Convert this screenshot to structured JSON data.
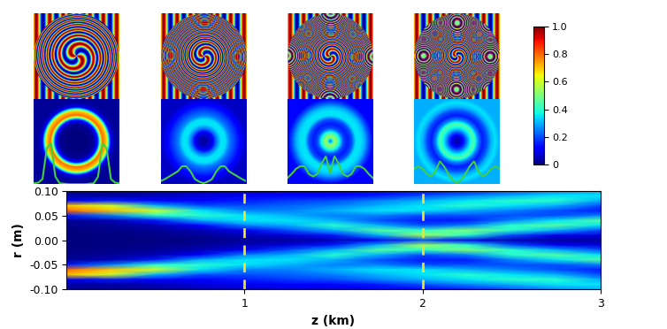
{
  "chart_data": {
    "type": "heatmap",
    "x_label": "z (km)",
    "y_label": "r (m)",
    "x": [
      0,
      0.25,
      0.5,
      0.75,
      1,
      1.25,
      1.5,
      1.75,
      2,
      2.25,
      2.5,
      2.75,
      3
    ],
    "y": [
      0.1,
      0.09,
      0.08,
      0.07,
      0.06,
      0.05,
      0.04,
      0.03,
      0.02,
      0.01,
      0.0,
      -0.01,
      -0.02,
      -0.03,
      -0.04,
      -0.05,
      -0.06,
      -0.07,
      -0.08,
      -0.09,
      -0.1
    ],
    "cells": [
      [
        0.02,
        0.02,
        0.03,
        0.05,
        0.06,
        0.08,
        0.08,
        0.1,
        0.12,
        0.15,
        0.2,
        0.25,
        0.3
      ],
      [
        0.03,
        0.03,
        0.05,
        0.08,
        0.1,
        0.12,
        0.12,
        0.15,
        0.2,
        0.25,
        0.3,
        0.35,
        0.35
      ],
      [
        0.1,
        0.15,
        0.12,
        0.12,
        0.15,
        0.18,
        0.2,
        0.25,
        0.3,
        0.35,
        0.4,
        0.4,
        0.3
      ],
      [
        0.7,
        0.6,
        0.3,
        0.2,
        0.2,
        0.22,
        0.25,
        0.3,
        0.35,
        0.4,
        0.35,
        0.3,
        0.2
      ],
      [
        0.8,
        0.7,
        0.6,
        0.35,
        0.25,
        0.25,
        0.3,
        0.35,
        0.35,
        0.3,
        0.25,
        0.2,
        0.15
      ],
      [
        0.15,
        0.25,
        0.4,
        0.4,
        0.35,
        0.3,
        0.25,
        0.25,
        0.2,
        0.2,
        0.2,
        0.2,
        0.25
      ],
      [
        0.02,
        0.05,
        0.15,
        0.3,
        0.35,
        0.35,
        0.3,
        0.2,
        0.15,
        0.15,
        0.25,
        0.35,
        0.45
      ],
      [
        0.01,
        0.02,
        0.05,
        0.12,
        0.25,
        0.3,
        0.4,
        0.3,
        0.2,
        0.25,
        0.4,
        0.45,
        0.35
      ],
      [
        0.0,
        0.01,
        0.02,
        0.05,
        0.1,
        0.2,
        0.3,
        0.45,
        0.4,
        0.5,
        0.4,
        0.3,
        0.2
      ],
      [
        0.0,
        0.0,
        0.01,
        0.02,
        0.05,
        0.08,
        0.15,
        0.3,
        0.55,
        0.4,
        0.2,
        0.1,
        0.08
      ],
      [
        0.0,
        0.0,
        0.0,
        0.01,
        0.02,
        0.03,
        0.05,
        0.1,
        0.2,
        0.1,
        0.05,
        0.03,
        0.03
      ],
      [
        0.0,
        0.0,
        0.01,
        0.02,
        0.05,
        0.08,
        0.15,
        0.3,
        0.55,
        0.4,
        0.2,
        0.1,
        0.08
      ],
      [
        0.0,
        0.01,
        0.02,
        0.05,
        0.1,
        0.2,
        0.3,
        0.45,
        0.4,
        0.5,
        0.4,
        0.3,
        0.2
      ],
      [
        0.01,
        0.02,
        0.05,
        0.12,
        0.25,
        0.3,
        0.4,
        0.3,
        0.2,
        0.25,
        0.4,
        0.45,
        0.35
      ],
      [
        0.02,
        0.05,
        0.15,
        0.3,
        0.35,
        0.35,
        0.3,
        0.2,
        0.15,
        0.15,
        0.25,
        0.35,
        0.45
      ],
      [
        0.15,
        0.25,
        0.4,
        0.4,
        0.35,
        0.3,
        0.25,
        0.25,
        0.2,
        0.2,
        0.2,
        0.2,
        0.25
      ],
      [
        0.8,
        0.7,
        0.6,
        0.35,
        0.25,
        0.25,
        0.3,
        0.35,
        0.35,
        0.3,
        0.25,
        0.2,
        0.15
      ],
      [
        0.7,
        0.6,
        0.3,
        0.2,
        0.2,
        0.22,
        0.25,
        0.3,
        0.35,
        0.4,
        0.35,
        0.3,
        0.2
      ],
      [
        0.1,
        0.15,
        0.12,
        0.12,
        0.15,
        0.18,
        0.2,
        0.25,
        0.3,
        0.35,
        0.4,
        0.4,
        0.3
      ],
      [
        0.03,
        0.03,
        0.05,
        0.08,
        0.1,
        0.12,
        0.12,
        0.15,
        0.2,
        0.25,
        0.3,
        0.35,
        0.35
      ],
      [
        0.02,
        0.02,
        0.03,
        0.05,
        0.06,
        0.08,
        0.08,
        0.1,
        0.12,
        0.15,
        0.2,
        0.25,
        0.3
      ]
    ],
    "xlim": [
      0,
      3
    ],
    "xticks": [
      1,
      2,
      3
    ],
    "ylim": [
      -0.1,
      0.1
    ],
    "yticks": [
      {
        "value": -0.1,
        "label": "-0.10"
      },
      {
        "value": -0.05,
        "label": "-0.05"
      },
      {
        "value": 0,
        "label": "0.00"
      },
      {
        "value": 0.05,
        "label": "0.05"
      },
      {
        "value": 0.1,
        "label": "0.10"
      }
    ],
    "colorbar_range": [
      0,
      1
    ],
    "colorbar_ticks": [
      0,
      0.2,
      0.4,
      0.6,
      0.8,
      {
        "value": 1,
        "label": "1.0"
      }
    ],
    "cuts_z": [
      1,
      2
    ],
    "profiles_z": [
      0,
      1,
      2,
      3
    ]
  }
}
